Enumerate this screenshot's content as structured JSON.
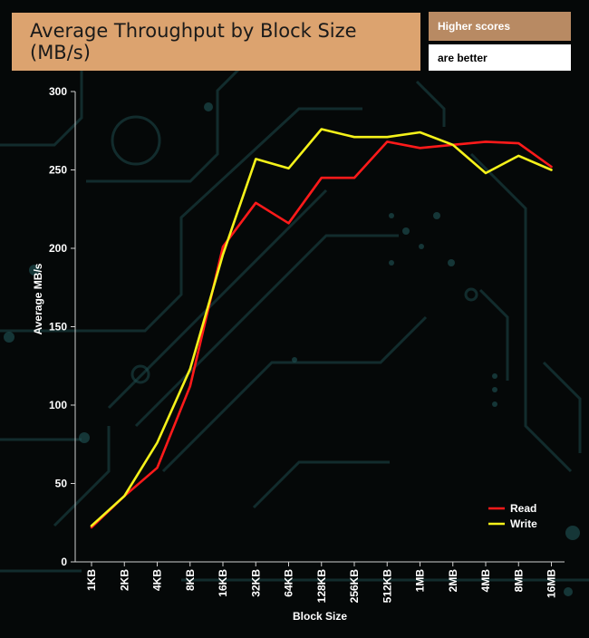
{
  "header": {
    "title": "Average Throughput by Block Size (MB/s)",
    "note_line1": "Higher scores",
    "note_line2": "are better"
  },
  "colors": {
    "title_bg": "#dca36f",
    "note_bg": "#b88a63",
    "read": "#ff1a1a",
    "write": "#f5f21a"
  },
  "chart_data": {
    "type": "line",
    "title": "Average Throughput by Block Size (MB/s)",
    "xlabel": "Block Size",
    "ylabel": "Average MB/s",
    "categories": [
      "1KB",
      "2KB",
      "4KB",
      "8KB",
      "16KB",
      "32KB",
      "64KB",
      "128KB",
      "256KB",
      "512KB",
      "1MB",
      "2MB",
      "4MB",
      "8MB",
      "16MB"
    ],
    "ylim": [
      0,
      300
    ],
    "yticks": [
      0,
      50,
      100,
      150,
      200,
      250,
      300
    ],
    "legend_position": "bottom-right",
    "series": [
      {
        "name": "Read",
        "color": "#ff1a1a",
        "values": [
          22,
          42,
          60,
          112,
          201,
          229,
          216,
          245,
          245,
          268,
          264,
          266,
          268,
          267,
          252
        ]
      },
      {
        "name": "Write",
        "color": "#f5f21a",
        "values": [
          23,
          42,
          76,
          123,
          196,
          257,
          251,
          276,
          271,
          271,
          274,
          266,
          248,
          259,
          250
        ]
      }
    ]
  }
}
